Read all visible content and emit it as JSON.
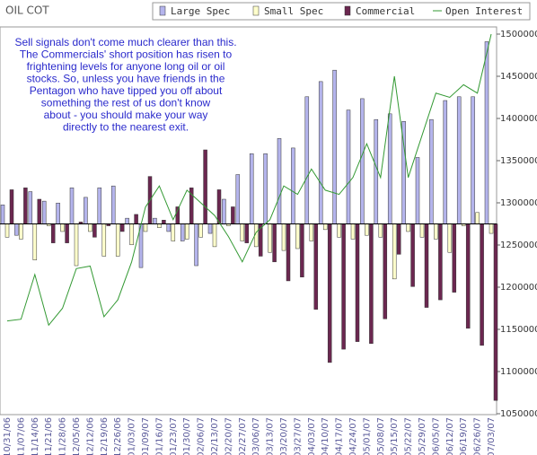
{
  "chart_data": {
    "type": "bar",
    "title": "OIL COT",
    "annotation": [
      "Sell signals don't come much clearer than this.",
      "The Commercials' short position has risen to",
      "frightening levels for anyone long oil or oil",
      "stocks. So, unless you have friends in the",
      "Pentagon who have tipped you off about",
      "something the rest of us don't know",
      "about - you should make your way",
      "directly to the nearest exit."
    ],
    "categories": [
      "10/31/06",
      "11/07/06",
      "11/14/06",
      "11/21/06",
      "11/28/06",
      "12/05/06",
      "12/12/06",
      "12/19/06",
      "12/26/06",
      "01/03/07",
      "01/09/07",
      "01/16/07",
      "01/23/07",
      "01/30/07",
      "02/06/07",
      "02/13/07",
      "02/20/07",
      "02/27/07",
      "03/06/07",
      "03/13/07",
      "03/20/07",
      "03/27/07",
      "04/03/07",
      "04/10/07",
      "04/17/07",
      "04/24/07",
      "05/01/07",
      "05/08/07",
      "05/15/07",
      "05/22/07",
      "05/29/07",
      "06/05/07",
      "06/12/07",
      "06/19/07",
      "06/26/07",
      "07/03/07"
    ],
    "ylim": [
      -100,
      100
    ],
    "y2lim": [
      1050000,
      1500000
    ],
    "y2ticks": [
      1050000,
      1100000,
      1150000,
      1200000,
      1250000,
      1300000,
      1350000,
      1400000,
      1450000,
      1500000
    ],
    "series": [
      {
        "name": "Large Spec",
        "color": "#b4b4ec",
        "values": [
          10,
          -6,
          17,
          12,
          11,
          19,
          14,
          19,
          20,
          3,
          -23,
          3,
          -4,
          -9,
          -22,
          -5,
          13,
          26,
          37,
          37,
          45,
          40,
          67,
          75,
          81,
          60,
          66,
          55,
          58,
          54,
          35,
          55,
          65,
          67,
          67,
          96
        ]
      },
      {
        "name": "Small Spec",
        "color": "#ffffcc",
        "values": [
          -7,
          -8,
          -19,
          -1,
          -4,
          -22,
          -4,
          -17,
          -17,
          -11,
          -4,
          -2,
          -9,
          -8,
          -7,
          -12,
          -1,
          -9,
          -12,
          -15,
          -14,
          -13,
          -9,
          -3,
          -7,
          -8,
          -6,
          -7,
          -29,
          -4,
          -7,
          -8,
          -15,
          -1,
          6,
          -5
        ]
      },
      {
        "name": "Commercial",
        "color": "#6b2750",
        "values": [
          18,
          19,
          13,
          -10,
          -10,
          1,
          -7,
          -1,
          -4,
          5,
          25,
          2,
          9,
          19,
          39,
          18,
          9,
          -10,
          -17,
          -20,
          -30,
          -28,
          -45,
          -73,
          -66,
          -62,
          -63,
          -50,
          -16,
          -33,
          -44,
          -40,
          -36,
          -55,
          -64,
          -93
        ]
      },
      {
        "name": "Open Interest",
        "color": "#339933",
        "type": "line",
        "axis": "y2",
        "values": [
          1160000,
          1162000,
          1215000,
          1155000,
          1175000,
          1222000,
          1225000,
          1165000,
          1185000,
          1230000,
          1295000,
          1320000,
          1280000,
          1315000,
          1300000,
          1285000,
          1260000,
          1230000,
          1265000,
          1280000,
          1320000,
          1310000,
          1340000,
          1315000,
          1310000,
          1330000,
          1370000,
          1330000,
          1450000,
          1330000,
          1380000,
          1430000,
          1425000,
          1440000,
          1430000,
          1500000
        ]
      }
    ]
  }
}
